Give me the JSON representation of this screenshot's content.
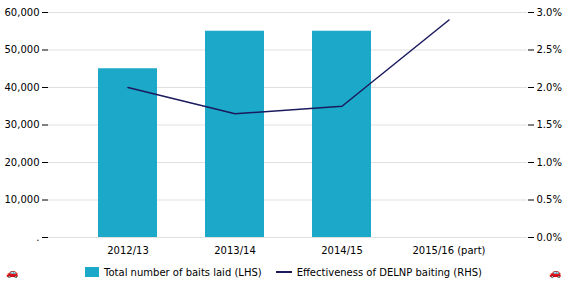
{
  "chart_data": {
    "type": "bar",
    "categories": [
      "2012/13",
      "2013/14",
      "2014/15",
      "2015/16 (part)"
    ],
    "series": [
      {
        "name": "Total number of baits laid (LHS)",
        "type": "bar",
        "color": "#1ca8c8",
        "values": [
          45000,
          55000,
          55000,
          0
        ]
      },
      {
        "name": "Effectiveness of DELNP baiting (RHS)",
        "type": "line",
        "color": "#1a1a5e",
        "axis": "y2",
        "values": [
          0.02,
          0.0165,
          0.0175,
          0.029
        ]
      }
    ],
    "ylim": [
      0,
      60000
    ],
    "yticks": [
      {
        "value": 0,
        "label": "."
      },
      {
        "value": 10000,
        "label": "10,000"
      },
      {
        "value": 20000,
        "label": "20,000"
      },
      {
        "value": 30000,
        "label": "30,000"
      },
      {
        "value": 40000,
        "label": "40,000"
      },
      {
        "value": 50000,
        "label": "50,000"
      },
      {
        "value": 60000,
        "label": "60,000"
      }
    ],
    "y2lim": [
      0.0,
      0.03
    ],
    "y2ticks": [
      {
        "value": 0.0,
        "label": "0.0%"
      },
      {
        "value": 0.005,
        "label": "0.5%"
      },
      {
        "value": 0.01,
        "label": "1.0%"
      },
      {
        "value": 0.015,
        "label": "1.5%"
      },
      {
        "value": 0.02,
        "label": "2.0%"
      },
      {
        "value": 0.025,
        "label": "2.5%"
      },
      {
        "value": 0.03,
        "label": "3.0%"
      }
    ],
    "grid": true,
    "legend": "bottom",
    "annotations": [
      {
        "text": "🚗"
      },
      {
        "text": "🚗"
      }
    ]
  }
}
